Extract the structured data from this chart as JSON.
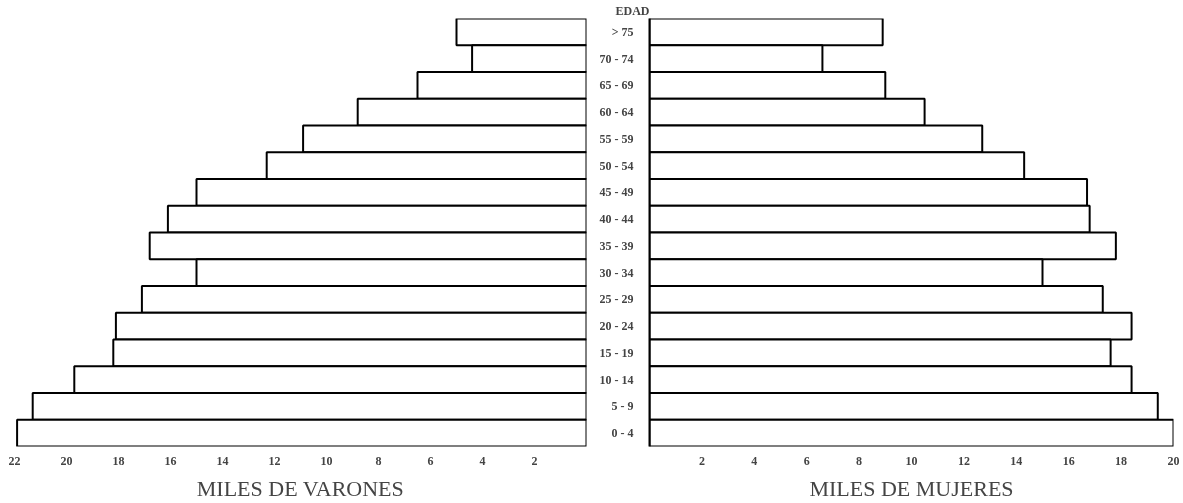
{
  "chart_data": [
    {
      "type": "bar",
      "orientation": "horizontal",
      "xlabel": "MILES DE VARONES",
      "categories": [
        null,
        null,
        null,
        null,
        null,
        null,
        null,
        null,
        null,
        null,
        null,
        null,
        null,
        null,
        null,
        null
      ],
      "values": [
        5.0,
        4.4,
        6.5,
        8.8,
        10.9,
        12.3,
        15.0,
        16.1,
        16.8,
        15.0,
        17.1,
        18.1,
        18.2,
        19.7,
        21.3,
        21.9
      ],
      "color": "#ffffff",
      "xlim": [
        22,
        0
      ],
      "xticks": [
        22,
        20,
        18,
        16,
        14,
        12,
        10,
        8,
        6,
        4,
        2
      ],
      "tick_labels": "x"
    },
    {
      "type": "bar",
      "orientation": "horizontal",
      "xlabel": "MILES DE MUJERES",
      "ylabel": "EDAD",
      "categories": [
        "> 75",
        "70 - 74",
        "65 - 69",
        "60 - 64",
        "55 - 59",
        "50 - 54",
        "45 - 49",
        "40 - 44",
        "35 - 39",
        "30 - 34",
        "25 - 29",
        "20 - 24",
        "15 - 19",
        "10 - 14",
        "5 - 9",
        "0 - 4"
      ],
      "values": [
        8.9,
        6.6,
        9.0,
        10.5,
        12.7,
        14.3,
        16.7,
        16.8,
        17.8,
        15.0,
        17.3,
        18.4,
        17.6,
        18.4,
        19.4,
        20.0
      ],
      "color": "#ffffff",
      "xlim": [
        0,
        20
      ],
      "xticks": [
        2,
        4,
        6,
        8,
        10,
        12,
        14,
        16,
        18,
        20
      ]
    }
  ]
}
